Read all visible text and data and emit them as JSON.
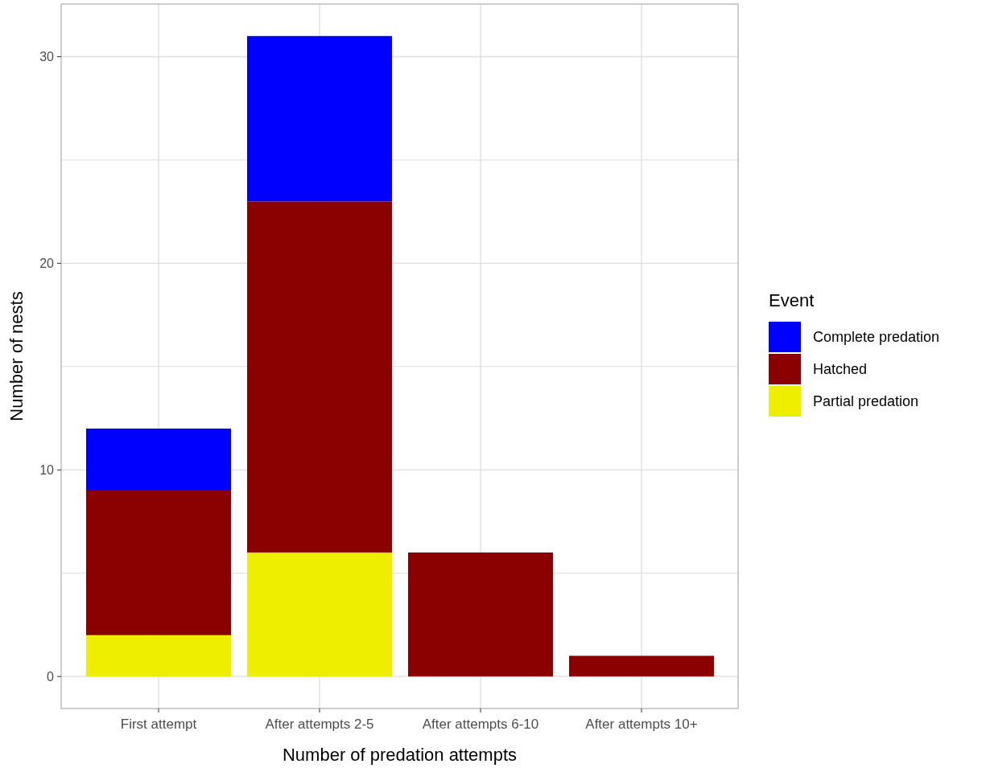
{
  "chart_data": {
    "type": "bar",
    "stacked": true,
    "xlabel": "Number of predation attempts",
    "ylabel": "Number of nests",
    "legend_title": "Event",
    "legend": "right",
    "grid": true,
    "categories": [
      "First attempt",
      "After attempts 2-5",
      "After attempts 6-10",
      "After attempts 10+"
    ],
    "series": [
      {
        "name": "Partial predation",
        "color": "#eeee00",
        "values": [
          2,
          6,
          0,
          0
        ]
      },
      {
        "name": "Hatched",
        "color": "#8b0000",
        "values": [
          7,
          17,
          6,
          1
        ]
      },
      {
        "name": "Complete predation",
        "color": "#0000ff",
        "values": [
          3,
          8,
          0,
          0
        ]
      }
    ],
    "ylim": [
      -1.55,
      32.55
    ],
    "yticks": [
      0,
      {
        "value": 5,
        "label": null
      },
      10,
      {
        "value": 15,
        "label": null
      },
      20,
      {
        "value": 25,
        "label": null
      },
      30
    ]
  }
}
